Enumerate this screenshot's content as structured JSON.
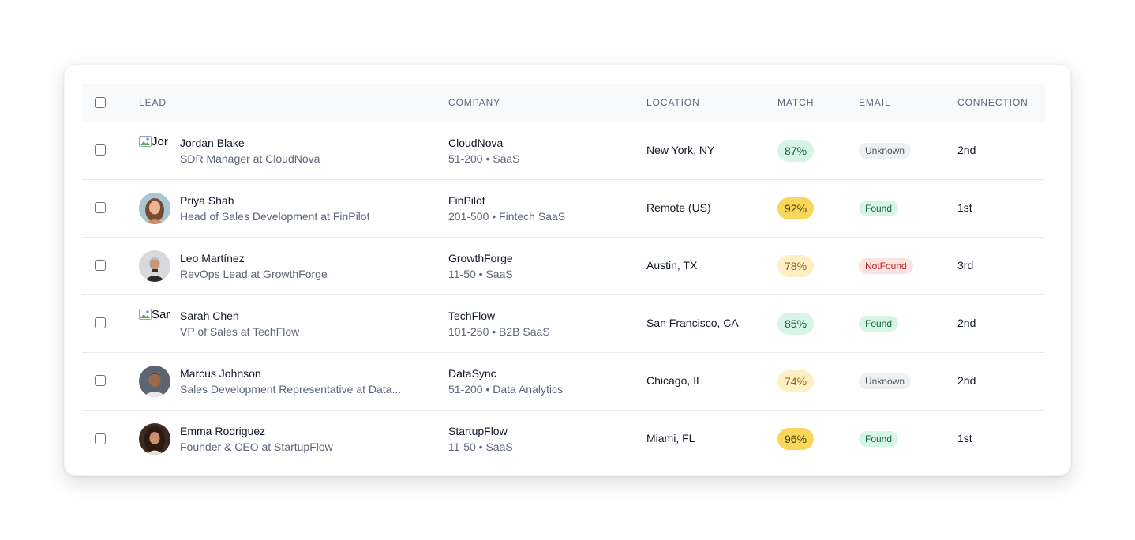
{
  "table": {
    "headers": {
      "lead": "LEAD",
      "company": "COMPANY",
      "location": "LOCATION",
      "match": "MATCH",
      "email": "EMAIL",
      "connection": "CONNECTION"
    },
    "rows": [
      {
        "name": "Jordan Blake",
        "title": "SDR Manager at CloudNova",
        "avatar_alt": "Jor",
        "avatar_broken": true,
        "company": "CloudNova",
        "company_meta": "51-200 • SaaS",
        "location": "New York, NY",
        "match": "87%",
        "match_style": "green",
        "email": "Unknown",
        "email_style": "unknown",
        "connection": "2nd"
      },
      {
        "name": "Priya Shah",
        "title": "Head of Sales Development at FinPilot",
        "avatar_alt": "",
        "avatar_broken": false,
        "company": "FinPilot",
        "company_meta": "201-500 • Fintech SaaS",
        "location": "Remote (US)",
        "match": "92%",
        "match_style": "yellow",
        "email": "Found",
        "email_style": "found",
        "connection": "1st"
      },
      {
        "name": "Leo Martínez",
        "title": "RevOps Lead at GrowthForge",
        "avatar_alt": "",
        "avatar_broken": false,
        "company": "GrowthForge",
        "company_meta": "11-50 • SaaS",
        "location": "Austin, TX",
        "match": "78%",
        "match_style": "amber",
        "email": "NotFound",
        "email_style": "notfound",
        "connection": "3rd"
      },
      {
        "name": "Sarah Chen",
        "title": "VP of Sales at TechFlow",
        "avatar_alt": "Sar",
        "avatar_broken": true,
        "company": "TechFlow",
        "company_meta": "101-250 • B2B SaaS",
        "location": "San Francisco, CA",
        "match": "85%",
        "match_style": "green",
        "email": "Found",
        "email_style": "found",
        "connection": "2nd"
      },
      {
        "name": "Marcus Johnson",
        "title": "Sales Development Representative at Data...",
        "avatar_alt": "",
        "avatar_broken": false,
        "company": "DataSync",
        "company_meta": "51-200 • Data Analytics",
        "location": "Chicago, IL",
        "match": "74%",
        "match_style": "amber",
        "email": "Unknown",
        "email_style": "unknown",
        "connection": "2nd"
      },
      {
        "name": "Emma Rodriguez",
        "title": "Founder & CEO at StartupFlow",
        "avatar_alt": "",
        "avatar_broken": false,
        "company": "StartupFlow",
        "company_meta": "11-50 • SaaS",
        "location": "Miami, FL",
        "match": "96%",
        "match_style": "yellow",
        "email": "Found",
        "email_style": "found",
        "connection": "1st"
      }
    ]
  }
}
